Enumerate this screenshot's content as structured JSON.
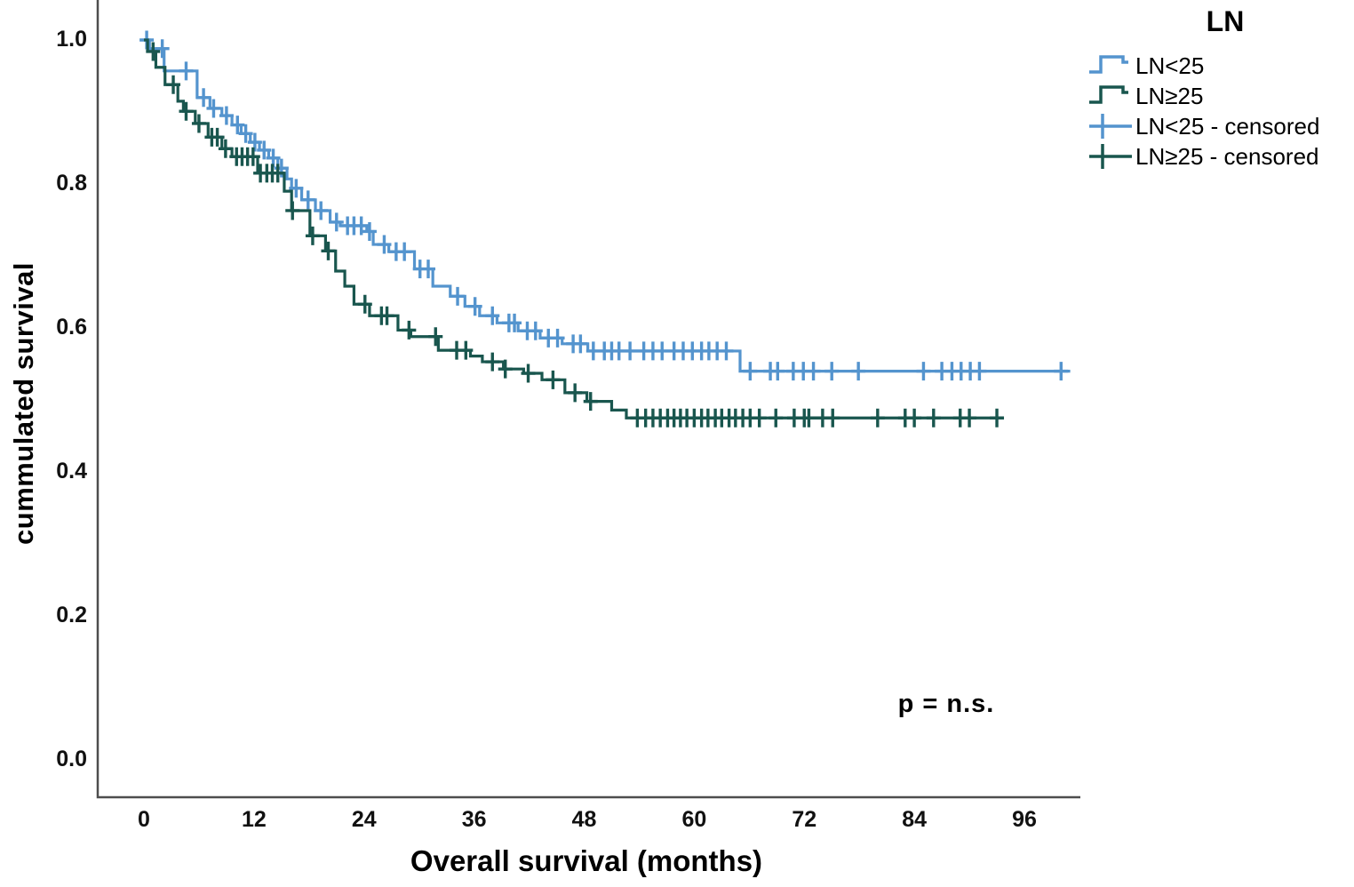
{
  "colors": {
    "blue": "#5494ce",
    "teal": "#19564e",
    "axis": "#4d4d4d",
    "text": "#000000"
  },
  "y_axis": {
    "label": "cummulated survival",
    "tick_labels": [
      "1.0",
      "0.8",
      "0.6",
      "0.4",
      "0.2",
      "0.0"
    ],
    "tick_values": [
      1.0,
      0.8,
      0.6,
      0.4,
      0.2,
      0.0
    ]
  },
  "x_axis": {
    "label": "Overall survival (months)",
    "tick_labels": [
      "0",
      "12",
      "24",
      "36",
      "48",
      "60",
      "72",
      "84",
      "96"
    ],
    "tick_values": [
      0,
      12,
      24,
      36,
      48,
      60,
      72,
      84,
      96
    ]
  },
  "annotation": {
    "text": "p = n.s."
  },
  "legend": {
    "title": "LN",
    "entries": [
      {
        "label": "LN<25",
        "glyph": "step-line-icon",
        "color": "blue"
      },
      {
        "label": "LN≥25",
        "glyph": "step-line-icon",
        "color": "teal"
      },
      {
        "label": "LN<25 - censored",
        "glyph": "censor-plus-icon",
        "color": "blue"
      },
      {
        "label": "LN≥25 - censored",
        "glyph": "censor-plus-icon",
        "color": "teal"
      }
    ]
  },
  "chart_data": {
    "type": "line",
    "subtype": "kaplan-meier-step",
    "title": "",
    "xlabel": "Overall survival (months)",
    "ylabel": "cummulated survival",
    "xlim": [
      -5,
      102
    ],
    "ylim": [
      -0.05,
      1.05
    ],
    "grid": false,
    "legend_position": "top-right",
    "series": [
      {
        "name": "LN<25",
        "color": "blue",
        "end_time": 101,
        "steps": [
          [
            0,
            1.0
          ],
          [
            0.6,
            0.988
          ],
          [
            2.2,
            0.957
          ],
          [
            5.8,
            0.92
          ],
          [
            7.2,
            0.905
          ],
          [
            8.5,
            0.895
          ],
          [
            9.6,
            0.882
          ],
          [
            10.6,
            0.87
          ],
          [
            11.6,
            0.858
          ],
          [
            12.6,
            0.847
          ],
          [
            13.6,
            0.836
          ],
          [
            14.6,
            0.822
          ],
          [
            15.6,
            0.807
          ],
          [
            16.1,
            0.794
          ],
          [
            17.2,
            0.778
          ],
          [
            18.7,
            0.763
          ],
          [
            20.3,
            0.747
          ],
          [
            21.4,
            0.742
          ],
          [
            24.3,
            0.734
          ],
          [
            25.0,
            0.716
          ],
          [
            26.7,
            0.706
          ],
          [
            29.5,
            0.682
          ],
          [
            31.5,
            0.658
          ],
          [
            33.4,
            0.644
          ],
          [
            35.0,
            0.63
          ],
          [
            36.6,
            0.617
          ],
          [
            38.5,
            0.607
          ],
          [
            40.8,
            0.596
          ],
          [
            43.2,
            0.586
          ],
          [
            45.6,
            0.578
          ],
          [
            48.4,
            0.568
          ],
          [
            65.0,
            0.54
          ]
        ],
        "censor_times": [
          0.3,
          2.0,
          4.6,
          6.5,
          7.6,
          9.0,
          10.2,
          11.1,
          12.1,
          13.1,
          14.1,
          15.0,
          16.6,
          17.9,
          19.3,
          21.0,
          22.2,
          22.9,
          23.7,
          24.6,
          26.2,
          27.5,
          28.4,
          30.1,
          31.0,
          34.2,
          36.1,
          38.0,
          39.8,
          40.4,
          41.8,
          42.7,
          44.1,
          45.1,
          46.8,
          47.6,
          49.0,
          50.2,
          51.0,
          51.8,
          53.0,
          54.5,
          55.5,
          56.5,
          57.8,
          58.8,
          59.8,
          60.8,
          61.6,
          62.5,
          63.5,
          66.1,
          68.3,
          69.1,
          70.8,
          71.9,
          73.0,
          75.0,
          77.9,
          85.0,
          87.0,
          88.1,
          89.1,
          90.1,
          91.1,
          100.0
        ]
      },
      {
        "name": "LN≥25",
        "color": "teal",
        "end_time": 93.2,
        "steps": [
          [
            0,
            1.0
          ],
          [
            0.4,
            0.984
          ],
          [
            1.3,
            0.962
          ],
          [
            2.3,
            0.938
          ],
          [
            3.7,
            0.915
          ],
          [
            4.3,
            0.901
          ],
          [
            5.6,
            0.884
          ],
          [
            7.0,
            0.865
          ],
          [
            8.5,
            0.849
          ],
          [
            9.6,
            0.838
          ],
          [
            12.4,
            0.815
          ],
          [
            15.3,
            0.79
          ],
          [
            16.1,
            0.763
          ],
          [
            18.1,
            0.728
          ],
          [
            19.8,
            0.707
          ],
          [
            20.9,
            0.679
          ],
          [
            21.9,
            0.658
          ],
          [
            22.9,
            0.633
          ],
          [
            24.6,
            0.617
          ],
          [
            27.7,
            0.597
          ],
          [
            29.1,
            0.588
          ],
          [
            32.1,
            0.569
          ],
          [
            35.6,
            0.561
          ],
          [
            36.9,
            0.553
          ],
          [
            39.2,
            0.543
          ],
          [
            41.4,
            0.537
          ],
          [
            43.4,
            0.528
          ],
          [
            45.9,
            0.51
          ],
          [
            48.3,
            0.498
          ],
          [
            51.0,
            0.486
          ],
          [
            52.6,
            0.475
          ]
        ],
        "censor_times": [
          1.0,
          3.2,
          4.6,
          6.0,
          7.4,
          8.0,
          8.9,
          10.1,
          10.7,
          11.3,
          11.9,
          12.7,
          13.4,
          14.0,
          14.6,
          16.2,
          18.4,
          20.1,
          24.1,
          25.9,
          26.5,
          28.9,
          31.8,
          34.1,
          35.1,
          38.0,
          39.4,
          41.9,
          44.6,
          47.0,
          48.7,
          53.8,
          54.7,
          55.5,
          56.3,
          57.1,
          57.8,
          58.5,
          59.2,
          60.0,
          60.8,
          61.5,
          62.3,
          63.0,
          63.8,
          64.5,
          65.3,
          66.1,
          67.1,
          68.9,
          70.9,
          72.0,
          72.5,
          74.0,
          75.1,
          80.0,
          83.0,
          84.0,
          86.1,
          89.0,
          90.0,
          93.0
        ]
      }
    ]
  }
}
